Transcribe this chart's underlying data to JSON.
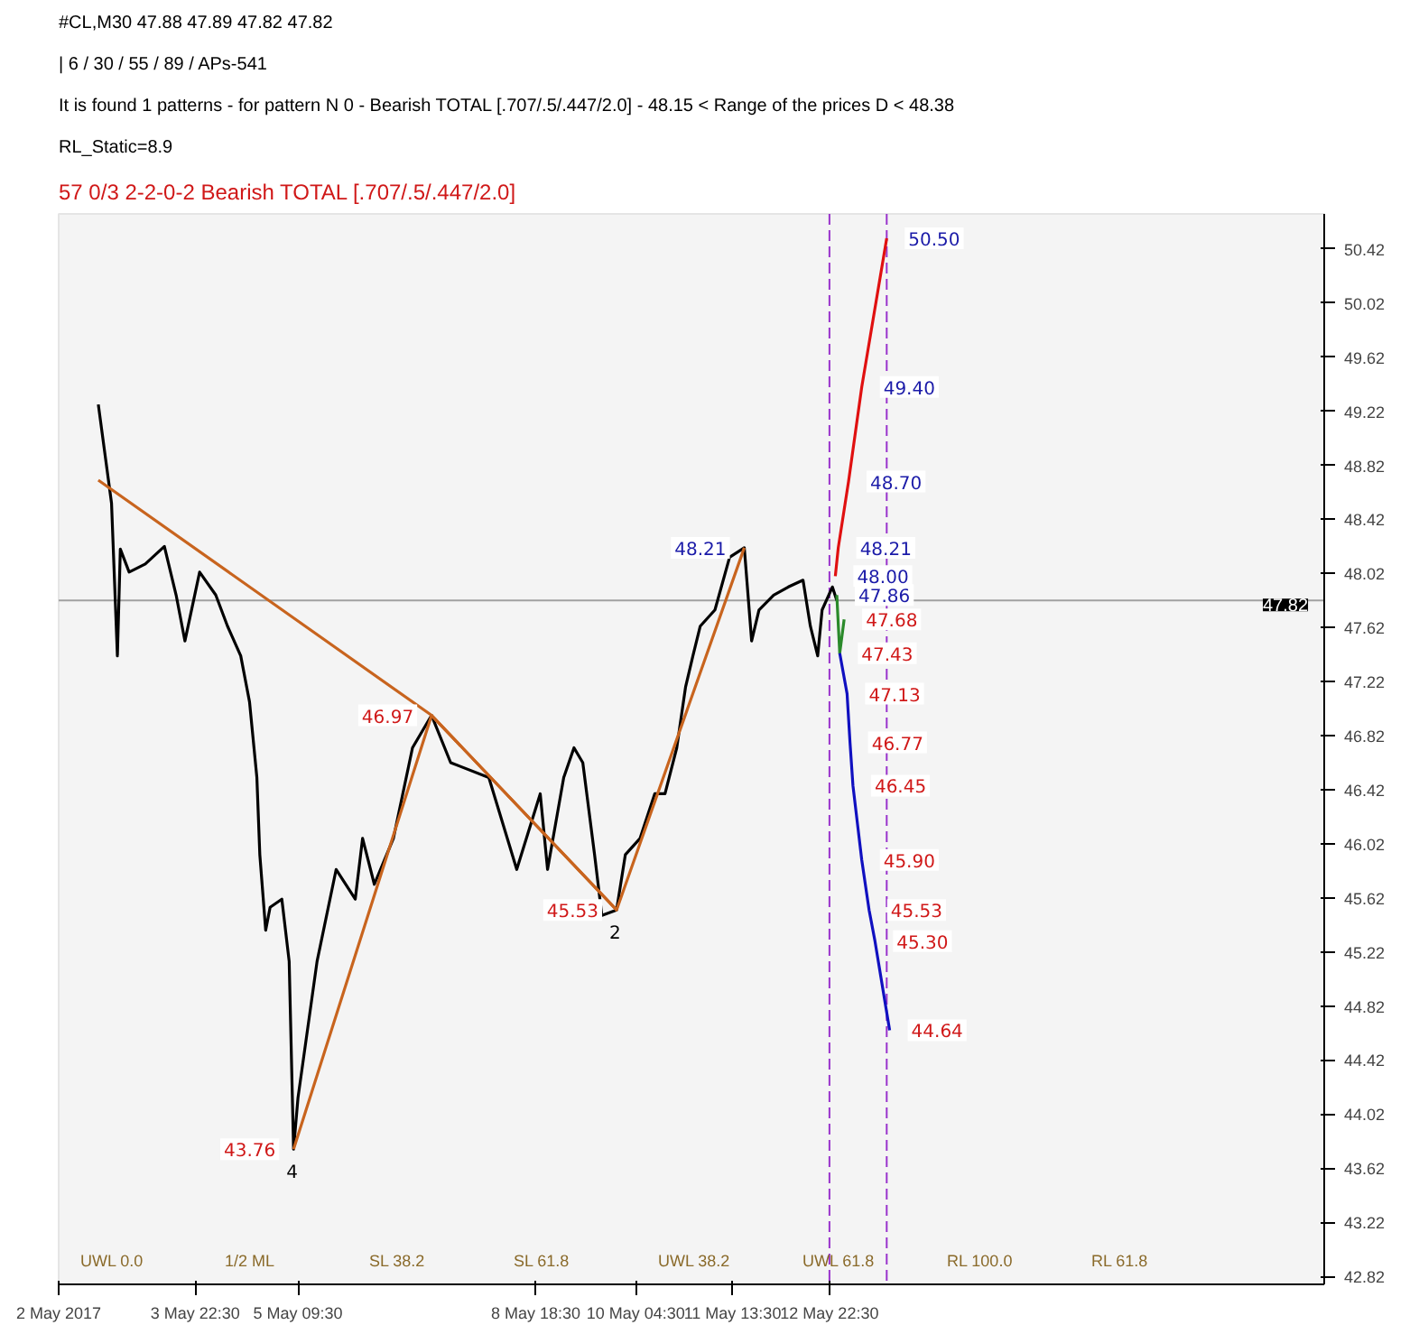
{
  "chart_data": {
    "type": "line",
    "title": "#CL,M30  47.88 47.89 47.82 47.82",
    "annotations": [
      "| 6 / 30 / 55 / 89 / APs-541",
      "It is found 1 patterns  -  for pattern N 0 - Bearish TOTAL [.707/.5/.447/2.0] - 48.15 < Range of the prices D < 48.38",
      "RL_Static=8.9",
      "57      0/3        2-2-0-2      Bearish TOTAL [.707/.5/.447/2.0]",
      "UWL 0.0",
      "1/2 ML",
      "SL 38.2",
      "SL 61.8",
      "UWL 38.2",
      "UWL 61.8",
      "RL 100.0",
      "RL 61.8",
      {
        "text": "50.50",
        "x": "2017-05-13T18:00",
        "y": 50.5
      },
      {
        "text": "49.40",
        "x": "2017-05-13T09:30",
        "y": 49.4
      },
      {
        "text": "48.70",
        "x": "2017-05-13T05:00",
        "y": 48.7
      },
      {
        "text": "48.21",
        "x": "2017-05-13T01:30",
        "y": 48.21
      },
      {
        "text": "48.00",
        "x": "2017-05-13T00:30",
        "y": 48.0
      },
      {
        "text": "47.86",
        "x": "2017-05-13T01:00",
        "y": 47.86
      },
      {
        "text": "47.68",
        "x": "2017-05-13T03:30",
        "y": 47.68
      },
      {
        "text": "47.43",
        "x": "2017-05-13T02:00",
        "y": 47.43
      },
      {
        "text": "47.13",
        "x": "2017-05-13T04:30",
        "y": 47.13
      },
      {
        "text": "46.77",
        "x": "2017-05-13T05:30",
        "y": 46.77
      },
      {
        "text": "46.45",
        "x": "2017-05-13T06:30",
        "y": 46.45
      },
      {
        "text": "45.90",
        "x": "2017-05-13T09:30",
        "y": 45.9
      },
      {
        "text": "45.53",
        "x": "2017-05-13T12:00",
        "y": 45.53
      },
      {
        "text": "45.30",
        "x": "2017-05-13T14:00",
        "y": 45.3
      },
      {
        "text": "44.64",
        "x": "2017-05-13T19:00",
        "y": 44.64
      },
      {
        "text": "48.21",
        "x": "2017-05-11T17:30",
        "y": 48.21
      },
      {
        "text": "46.97",
        "x": "2017-05-07T07:00",
        "y": 46.97
      },
      {
        "text": "45.53",
        "x": "2017-05-09T22:00",
        "y": 45.53
      },
      {
        "text": "43.76",
        "x": "2017-05-05T08:00",
        "y": 43.76
      },
      {
        "text": "4",
        "x": "2017-05-05T08:00",
        "y": 43.76
      },
      {
        "text": "2",
        "x": "2017-05-09T22:00",
        "y": 45.53
      }
    ],
    "x": [
      "2017-05-02T13:30",
      "2017-05-02T18:00",
      "2017-05-02T20:00",
      "2017-05-02T21:00",
      "2017-05-03T00:00",
      "2017-05-03T05:30",
      "2017-05-03T12:00",
      "2017-05-03T16:00",
      "2017-05-03T19:00",
      "2017-05-04T00:00",
      "2017-05-04T05:30",
      "2017-05-04T09:30",
      "2017-05-04T14:00",
      "2017-05-04T17:00",
      "2017-05-04T19:30",
      "2017-05-04T20:30",
      "2017-05-04T22:30",
      "2017-05-05T00:00",
      "2017-05-05T04:00",
      "2017-05-05T06:30",
      "2017-05-05T08:00",
      "2017-05-05T09:30",
      "2017-05-05T16:00",
      "2017-05-05T22:30",
      "2017-05-06T05:00",
      "2017-05-06T07:30",
      "2017-05-06T11:30",
      "2017-05-06T18:00",
      "2017-05-07T00:30",
      "2017-05-07T07:00",
      "2017-05-07T13:30",
      "2017-05-08T02:30",
      "2017-05-08T12:00",
      "2017-05-08T20:00",
      "2017-05-08T22:30",
      "2017-05-09T04:00",
      "2017-05-09T07:30",
      "2017-05-09T10:30",
      "2017-05-09T14:30",
      "2017-05-09T17:00",
      "2017-05-09T22:00",
      "2017-05-10T01:00",
      "2017-05-10T06:00",
      "2017-05-10T11:00",
      "2017-05-10T14:30",
      "2017-05-10T18:30",
      "2017-05-10T21:30",
      "2017-05-11T00:00",
      "2017-05-11T02:30",
      "2017-05-11T07:30",
      "2017-05-11T12:30",
      "2017-05-11T17:30",
      "2017-05-11T20:00",
      "2017-05-11T22:30",
      "2017-05-12T03:30",
      "2017-05-12T08:30",
      "2017-05-12T13:30",
      "2017-05-12T16:00",
      "2017-05-12T18:30",
      "2017-05-12T20:00",
      "2017-05-12T23:30",
      "2017-05-13T01:00"
    ],
    "series": [
      {
        "color": "#000000",
        "values": [
          49.27,
          48.54,
          47.41,
          48.2,
          48.03,
          48.09,
          48.22,
          47.86,
          47.52,
          48.03,
          47.86,
          47.63,
          47.41,
          47.07,
          46.51,
          45.94,
          45.38,
          45.55,
          45.61,
          45.15,
          43.76,
          44.14,
          45.15,
          45.83,
          45.61,
          46.06,
          45.72,
          46.06,
          46.73,
          46.97,
          46.62,
          46.51,
          45.83,
          46.39,
          45.83,
          46.51,
          46.73,
          46.62,
          45.94,
          45.49,
          45.53,
          45.94,
          46.06,
          46.39,
          46.39,
          46.73,
          47.18,
          47.41,
          47.63,
          47.75,
          48.14,
          48.21,
          47.52,
          47.75,
          47.86,
          47.92,
          47.97,
          47.63,
          47.41,
          47.75,
          47.92,
          47.82
        ]
      },
      {
        "color": "#c8641e",
        "x": [
          "2017-05-05T08:00",
          "2017-05-07T07:00",
          "2017-05-09T22:00",
          "2017-05-11T17:30"
        ],
        "values": [
          43.76,
          46.97,
          45.53,
          48.21
        ]
      },
      {
        "color": "#c8641e",
        "x": [
          "2017-05-02T13:30",
          "2017-05-07T07:00",
          "2017-05-09T22:00"
        ],
        "values": [
          48.71,
          46.97,
          45.53
        ]
      },
      {
        "color": "#e01010",
        "x": [
          "2017-05-13T00:30",
          "2017-05-13T01:30",
          "2017-05-13T05:00",
          "2017-05-13T09:30",
          "2017-05-13T18:00"
        ],
        "values": [
          48.0,
          48.21,
          48.7,
          49.4,
          50.5
        ]
      },
      {
        "color": "#2a8a2a",
        "x": [
          "2017-05-13T01:00",
          "2017-05-13T02:00",
          "2017-05-13T03:30"
        ],
        "values": [
          47.86,
          47.43,
          47.68
        ]
      },
      {
        "color": "#1010c0",
        "x": [
          "2017-05-13T02:00",
          "2017-05-13T04:30",
          "2017-05-13T05:30",
          "2017-05-13T06:30",
          "2017-05-13T09:30",
          "2017-05-13T12:00",
          "2017-05-13T14:00",
          "2017-05-13T19:00"
        ],
        "values": [
          47.43,
          47.13,
          46.77,
          46.45,
          45.9,
          45.53,
          45.3,
          44.64
        ]
      }
    ],
    "ref_lines": [
      {
        "axis": "y",
        "value": 47.82,
        "label": "47.82",
        "color": "#a0a0a0"
      },
      {
        "axis": "x",
        "value": "2017-05-12T22:30",
        "color": "#9933cc",
        "line_style": "dashed"
      },
      {
        "axis": "x",
        "value": "2017-05-13T18:00",
        "color": "#9933cc",
        "line_style": "dashed"
      }
    ],
    "xlim": [
      "2017-05-02T00:00",
      "2017-05-19T23:00"
    ],
    "ylim": [
      42.76,
      50.68
    ],
    "xticks": [
      {
        "value": "2017-05-02",
        "label": "2 May 2017"
      },
      {
        "value": "2017-05-03T22:30",
        "label": "3 May 22:30"
      },
      {
        "value": "2017-05-05T09:30",
        "label": "5 May 09:30"
      },
      {
        "value": "2017-05-08T18:30",
        "label": "8 May 18:30"
      },
      {
        "value": "2017-05-10T04:30",
        "label": "10 May 04:30"
      },
      {
        "value": "2017-05-11T13:30",
        "label": "11 May 13:30"
      },
      {
        "value": "2017-05-12T22:30",
        "label": "12 May 22:30"
      }
    ],
    "yticks": [
      42.82,
      43.22,
      43.62,
      44.02,
      44.42,
      44.82,
      45.22,
      45.62,
      46.02,
      46.42,
      46.82,
      47.22,
      47.62,
      48.02,
      48.42,
      48.82,
      49.22,
      49.62,
      50.02,
      50.42
    ],
    "grid": false,
    "marker": "none",
    "line_style": "solid"
  }
}
